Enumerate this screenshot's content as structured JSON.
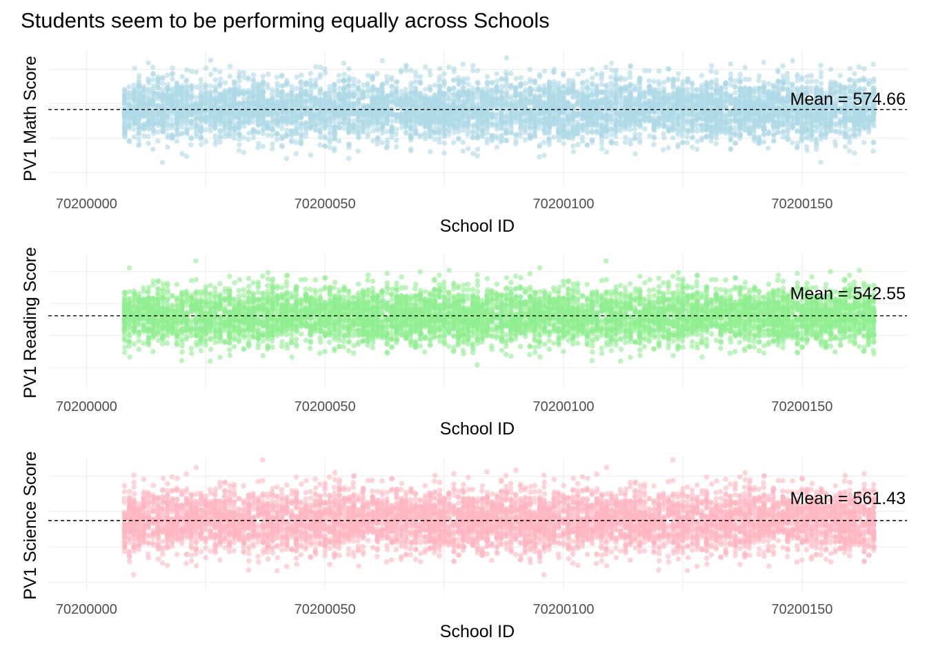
{
  "title": "Students seem to be performing equally across Schools",
  "chart_data": [
    {
      "type": "scatter",
      "title": "",
      "xlabel": "School ID",
      "ylabel": "PV1 Math Score",
      "x_ticks": [
        70200000,
        70200050,
        70200100,
        70200150
      ],
      "xlim": [
        70199992,
        70200172
      ],
      "x_school_range": [
        70200008,
        70200165
      ],
      "ylim": [
        240,
        830
      ],
      "y_ticks_gridlines": [
        300,
        450,
        600,
        750
      ],
      "y_tick_labels_shown": false,
      "points_per_school_approx": 40,
      "point_color": "#ADD8E6",
      "mean": 574.66,
      "mean_label": "Mean = 574.66",
      "mean_line_style": "dashed",
      "grid": true
    },
    {
      "type": "scatter",
      "title": "",
      "xlabel": "School ID",
      "ylabel": "PV1 Reading Score",
      "x_ticks": [
        70200000,
        70200050,
        70200100,
        70200150
      ],
      "xlim": [
        70199992,
        70200172
      ],
      "x_school_range": [
        70200008,
        70200165
      ],
      "ylim": [
        200,
        830
      ],
      "y_ticks_gridlines": [
        300,
        450,
        600,
        750
      ],
      "y_tick_labels_shown": false,
      "points_per_school_approx": 40,
      "point_color": "#90EE90",
      "mean": 542.55,
      "mean_label": "Mean = 542.55",
      "mean_line_style": "dashed",
      "grid": true
    },
    {
      "type": "scatter",
      "title": "",
      "xlabel": "School ID",
      "ylabel": "PV1 Science Score",
      "x_ticks": [
        70200000,
        70200050,
        70200100,
        70200150
      ],
      "xlim": [
        70199992,
        70200172
      ],
      "x_school_range": [
        70200008,
        70200165
      ],
      "ylim": [
        260,
        830
      ],
      "y_ticks_gridlines": [
        300,
        450,
        600,
        750
      ],
      "y_tick_labels_shown": false,
      "points_per_school_approx": 40,
      "point_color": "#FFB6C1",
      "mean": 561.43,
      "mean_label": "Mean = 561.43",
      "mean_line_style": "dashed",
      "grid": true
    }
  ]
}
